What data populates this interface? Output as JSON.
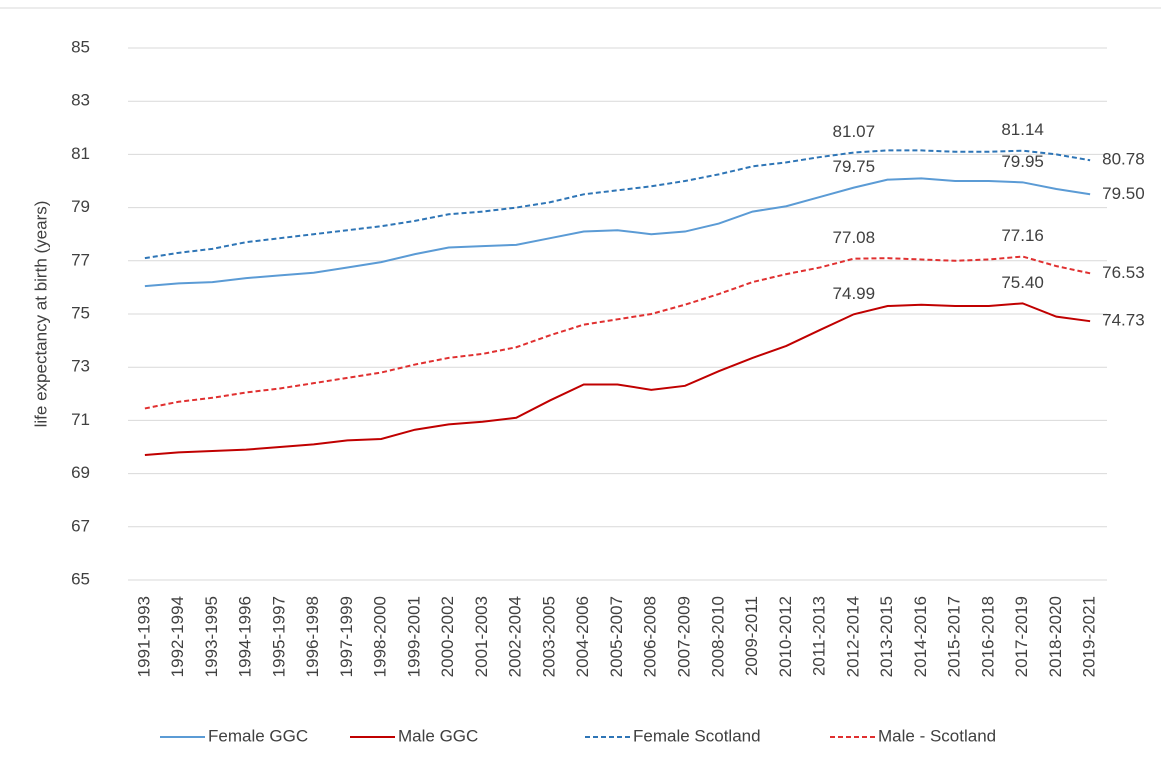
{
  "chart_data": {
    "type": "line",
    "y_label": "life expectancy at birth (years)",
    "categories": [
      "1991-1993",
      "1992-1994",
      "1993-1995",
      "1994-1996",
      "1995-1997",
      "1996-1998",
      "1997-1999",
      "1998-2000",
      "1999-2001",
      "2000-2002",
      "2001-2003",
      "2002-2004",
      "2003-2005",
      "2004-2006",
      "2005-2007",
      "2006-2008",
      "2007-2009",
      "2008-2010",
      "2009-2011",
      "2010-2012",
      "2011-2013",
      "2012-2014",
      "2013-2015",
      "2014-2016",
      "2015-2017",
      "2016-2018",
      "2017-2019",
      "2018-2020",
      "2019-2021"
    ],
    "ylim": [
      65,
      85
    ],
    "yticks": [
      65,
      67,
      69,
      71,
      73,
      75,
      77,
      79,
      81,
      83,
      85
    ],
    "grid": true,
    "series": [
      {
        "name": "Female GGC",
        "color": "#5b9bd5",
        "dashed": false,
        "values": [
          76.05,
          76.15,
          76.2,
          76.35,
          76.45,
          76.55,
          76.75,
          76.95,
          77.25,
          77.5,
          77.55,
          77.6,
          77.85,
          78.1,
          78.15,
          78.0,
          78.1,
          78.4,
          78.85,
          79.05,
          79.4,
          79.75,
          80.05,
          80.1,
          80.0,
          80.0,
          79.95,
          79.7,
          79.5
        ],
        "value_labels": [
          null,
          null,
          null,
          null,
          null,
          null,
          null,
          null,
          null,
          null,
          null,
          null,
          null,
          null,
          null,
          null,
          null,
          null,
          null,
          null,
          null,
          "79.75",
          null,
          null,
          null,
          null,
          "79.95",
          null,
          "79.50"
        ]
      },
      {
        "name": "Male GGC",
        "color": "#c00000",
        "dashed": false,
        "values": [
          69.7,
          69.8,
          69.85,
          69.9,
          70.0,
          70.1,
          70.25,
          70.3,
          70.65,
          70.85,
          70.95,
          71.1,
          71.75,
          72.35,
          72.35,
          72.15,
          72.3,
          72.85,
          73.35,
          73.8,
          74.4,
          74.99,
          75.3,
          75.35,
          75.3,
          75.3,
          75.4,
          74.9,
          74.73
        ],
        "value_labels": [
          null,
          null,
          null,
          null,
          null,
          null,
          null,
          null,
          null,
          null,
          null,
          null,
          null,
          null,
          null,
          null,
          null,
          null,
          null,
          null,
          null,
          "74.99",
          null,
          null,
          null,
          null,
          "75.40",
          null,
          "74.73"
        ]
      },
      {
        "name": "Female Scotland",
        "color": "#2e75b6",
        "dashed": true,
        "values": [
          77.1,
          77.3,
          77.45,
          77.7,
          77.85,
          78.0,
          78.15,
          78.3,
          78.5,
          78.75,
          78.85,
          79.0,
          79.2,
          79.5,
          79.65,
          79.8,
          80.0,
          80.25,
          80.55,
          80.7,
          80.9,
          81.07,
          81.15,
          81.15,
          81.1,
          81.1,
          81.14,
          81.0,
          80.78
        ],
        "value_labels": [
          null,
          null,
          null,
          null,
          null,
          null,
          null,
          null,
          null,
          null,
          null,
          null,
          null,
          null,
          null,
          null,
          null,
          null,
          null,
          null,
          null,
          "81.07",
          null,
          null,
          null,
          null,
          "81.14",
          null,
          "80.78"
        ]
      },
      {
        "name": "Male - Scotland",
        "color": "#e03030",
        "dashed": true,
        "values": [
          71.45,
          71.7,
          71.85,
          72.05,
          72.2,
          72.4,
          72.6,
          72.8,
          73.1,
          73.35,
          73.5,
          73.75,
          74.2,
          74.6,
          74.8,
          75.0,
          75.35,
          75.75,
          76.2,
          76.5,
          76.75,
          77.08,
          77.1,
          77.05,
          77.0,
          77.05,
          77.16,
          76.8,
          76.53
        ],
        "value_labels": [
          null,
          null,
          null,
          null,
          null,
          null,
          null,
          null,
          null,
          null,
          null,
          null,
          null,
          null,
          null,
          null,
          null,
          null,
          null,
          null,
          null,
          "77.08",
          null,
          null,
          null,
          null,
          "77.16",
          null,
          "76.53"
        ]
      }
    ]
  }
}
